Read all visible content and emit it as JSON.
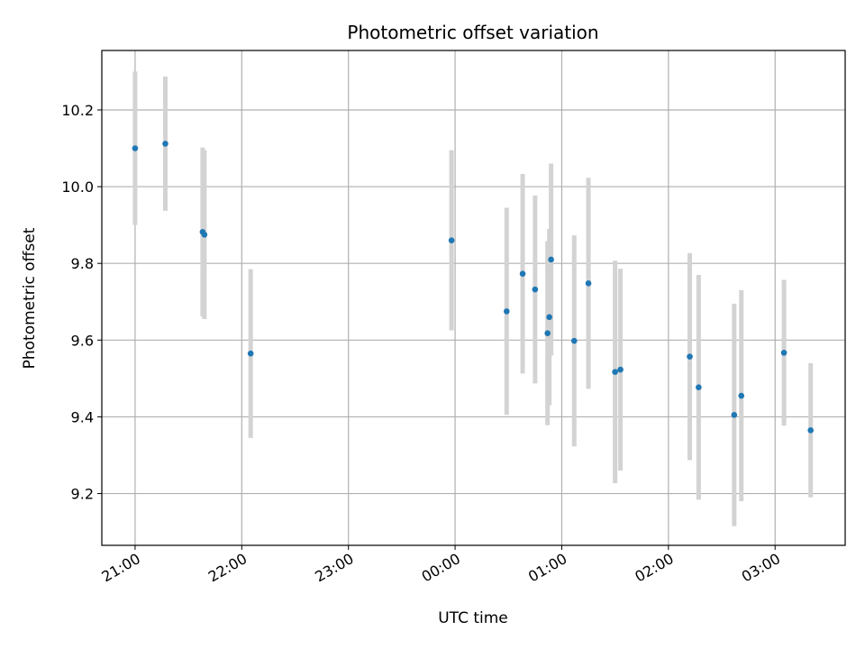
{
  "chart_data": {
    "type": "scatter",
    "title": "Photometric offset variation",
    "xlabel": "UTC time",
    "ylabel": "Photometric offset",
    "x_unit": "UTC time (hours after 21:00)",
    "xlim": [
      20.688,
      27.657
    ],
    "ylim": [
      9.065,
      10.355
    ],
    "grid": true,
    "x_ticks": [
      {
        "value": 21,
        "label": "21:00"
      },
      {
        "value": 22,
        "label": "22:00"
      },
      {
        "value": 23,
        "label": "23:00"
      },
      {
        "value": 24,
        "label": "00:00"
      },
      {
        "value": 25,
        "label": "01:00"
      },
      {
        "value": 26,
        "label": "02:00"
      },
      {
        "value": 27,
        "label": "03:00"
      }
    ],
    "y_ticks": [
      {
        "value": 9.2,
        "label": "9.2"
      },
      {
        "value": 9.4,
        "label": "9.4"
      },
      {
        "value": 9.6,
        "label": "9.6"
      },
      {
        "value": 9.8,
        "label": "9.8"
      },
      {
        "value": 10.0,
        "label": "10.0"
      },
      {
        "value": 10.2,
        "label": "10.2"
      }
    ],
    "points_color": "#1f77b4",
    "errorbar_color": "#d3d3d3",
    "points": [
      {
        "time": "21:00",
        "y": 10.1,
        "err": 0.2
      },
      {
        "time": "21:17",
        "y": 10.112,
        "err": 0.175
      },
      {
        "time": "21:38",
        "y": 9.882,
        "err": 0.22
      },
      {
        "time": "21:39",
        "y": 9.875,
        "err": 0.22
      },
      {
        "time": "22:05",
        "y": 9.565,
        "err": 0.22
      },
      {
        "time": "23:58",
        "y": 9.86,
        "err": 0.235
      },
      {
        "time": "00:29",
        "y": 9.675,
        "err": 0.27
      },
      {
        "time": "00:38",
        "y": 9.773,
        "err": 0.26
      },
      {
        "time": "00:45",
        "y": 9.732,
        "err": 0.245
      },
      {
        "time": "00:52",
        "y": 9.618,
        "err": 0.24
      },
      {
        "time": "00:53",
        "y": 9.66,
        "err": 0.23
      },
      {
        "time": "00:54",
        "y": 9.81,
        "err": 0.25
      },
      {
        "time": "01:07",
        "y": 9.598,
        "err": 0.275
      },
      {
        "time": "01:15",
        "y": 9.748,
        "err": 0.275
      },
      {
        "time": "01:30",
        "y": 9.517,
        "err": 0.29
      },
      {
        "time": "01:33",
        "y": 9.523,
        "err": 0.263
      },
      {
        "time": "02:12",
        "y": 9.557,
        "err": 0.27
      },
      {
        "time": "02:17",
        "y": 9.477,
        "err": 0.293
      },
      {
        "time": "02:37",
        "y": 9.405,
        "err": 0.29
      },
      {
        "time": "02:41",
        "y": 9.455,
        "err": 0.275
      },
      {
        "time": "03:05",
        "y": 9.567,
        "err": 0.19
      },
      {
        "time": "03:20",
        "y": 9.365,
        "err": 0.175
      }
    ]
  }
}
